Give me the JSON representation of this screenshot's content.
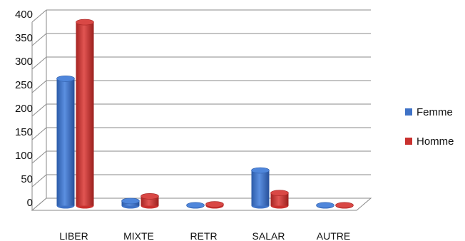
{
  "chart_data": {
    "type": "bar",
    "categories": [
      "LIBER",
      "MIXTE",
      "RETR",
      "SALAR",
      "AUTRE"
    ],
    "series": [
      {
        "name": "Femme",
        "values": [
          270,
          10,
          1,
          75,
          1
        ],
        "color": "#3f72c6"
      },
      {
        "name": "Homme",
        "values": [
          390,
          20,
          3,
          27,
          1
        ],
        "color": "#c9312f"
      }
    ],
    "ylim": [
      0,
      400
    ],
    "yticks": [
      0,
      50,
      100,
      150,
      200,
      250,
      300,
      350,
      400
    ],
    "grid": true,
    "legend_position": "right",
    "three_d": true
  }
}
